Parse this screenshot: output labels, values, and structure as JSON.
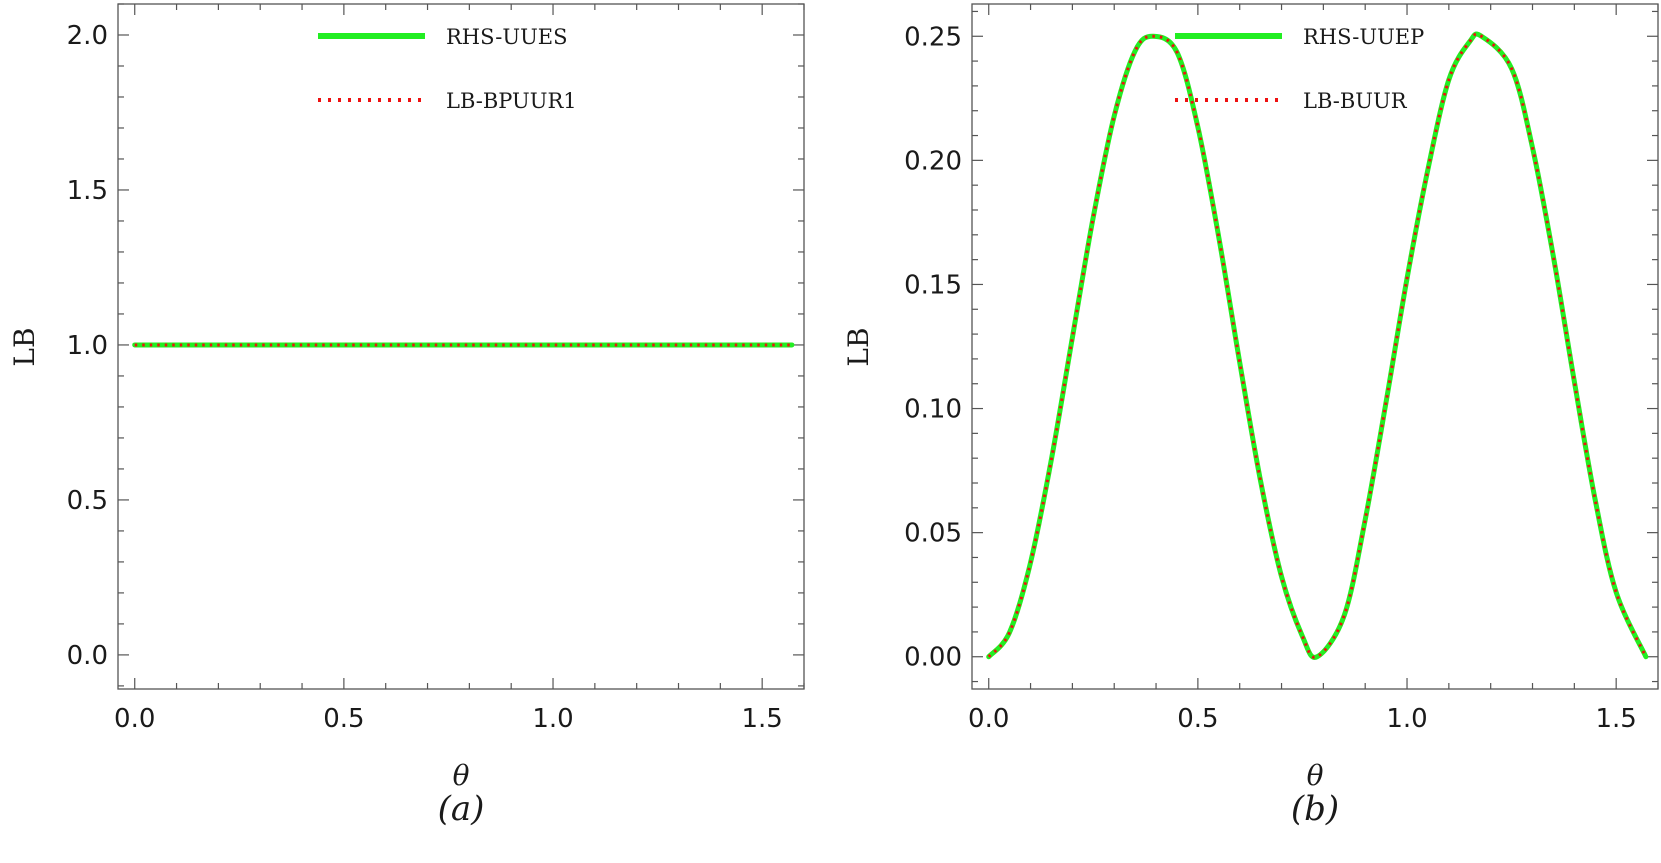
{
  "chart_data": [
    {
      "type": "line",
      "panel_label": "(a)",
      "xlabel": "θ",
      "ylabel": "LB",
      "xlim": [
        -0.04,
        1.6
      ],
      "ylim": [
        -0.11,
        2.1
      ],
      "xticks": [
        0.0,
        0.5,
        1.0,
        1.5
      ],
      "xtick_labels": [
        "0.0",
        "0.5",
        "1.0",
        "1.5"
      ],
      "yticks": [
        0.0,
        0.5,
        1.0,
        1.5,
        2.0
      ],
      "ytick_labels": [
        "0.0",
        "0.5",
        "1.0",
        "1.5",
        "2.0"
      ],
      "legend_position": "top-center",
      "series": [
        {
          "name": "RHS-UUES",
          "color": "#22ee22",
          "style": "solid",
          "x": [
            0.0,
            0.157,
            0.314,
            0.471,
            0.628,
            0.785,
            0.942,
            1.1,
            1.257,
            1.414,
            1.571
          ],
          "y": [
            1.0,
            1.0,
            1.0,
            1.0,
            1.0,
            1.0,
            1.0,
            1.0,
            1.0,
            1.0,
            1.0
          ]
        },
        {
          "name": "LB-BPUUR1",
          "color": "#ee1111",
          "style": "dotted",
          "x": [
            0.0,
            0.157,
            0.314,
            0.471,
            0.628,
            0.785,
            0.942,
            1.1,
            1.257,
            1.414,
            1.571
          ],
          "y": [
            1.0,
            1.0,
            1.0,
            1.0,
            1.0,
            1.0,
            1.0,
            1.0,
            1.0,
            1.0,
            1.0
          ]
        }
      ]
    },
    {
      "type": "line",
      "panel_label": "(b)",
      "xlabel": "θ",
      "ylabel": "LB",
      "xlim": [
        -0.04,
        1.6
      ],
      "ylim": [
        -0.013,
        0.263
      ],
      "xticks": [
        0.0,
        0.5,
        1.0,
        1.5
      ],
      "xtick_labels": [
        "0.0",
        "0.5",
        "1.0",
        "1.5"
      ],
      "yticks": [
        0.0,
        0.05,
        0.1,
        0.15,
        0.2,
        0.25
      ],
      "ytick_labels": [
        "0.00",
        "0.05",
        "0.10",
        "0.15",
        "0.20",
        "0.25"
      ],
      "legend_position": "top-center",
      "series": [
        {
          "name": "RHS-UUEP",
          "color": "#22ee22",
          "style": "solid",
          "x": [
            0.0,
            0.05,
            0.1,
            0.15,
            0.2,
            0.25,
            0.3,
            0.35,
            0.393,
            0.45,
            0.5,
            0.55,
            0.6,
            0.65,
            0.7,
            0.75,
            0.785,
            0.85,
            0.9,
            0.95,
            1.0,
            1.05,
            1.1,
            1.15,
            1.178,
            1.25,
            1.3,
            1.35,
            1.4,
            1.45,
            1.5,
            1.571
          ],
          "y": [
            0.0,
            0.0099,
            0.038,
            0.0797,
            0.1286,
            0.1772,
            0.2179,
            0.2441,
            0.25,
            0.2436,
            0.2134,
            0.169,
            0.1186,
            0.0707,
            0.0323,
            0.0082,
            0.0,
            0.0167,
            0.0552,
            0.1027,
            0.1524,
            0.1964,
            0.2325,
            0.2479,
            0.25,
            0.237,
            0.2051,
            0.1611,
            0.1109,
            0.0631,
            0.026,
            0.0
          ]
        },
        {
          "name": "LB-BUUR",
          "color": "#ee1111",
          "style": "dotted",
          "x": [
            0.0,
            0.05,
            0.1,
            0.15,
            0.2,
            0.25,
            0.3,
            0.35,
            0.393,
            0.45,
            0.5,
            0.55,
            0.6,
            0.65,
            0.7,
            0.75,
            0.785,
            0.85,
            0.9,
            0.95,
            1.0,
            1.05,
            1.1,
            1.15,
            1.178,
            1.25,
            1.3,
            1.35,
            1.4,
            1.45,
            1.5,
            1.571
          ],
          "y": [
            0.0,
            0.0099,
            0.038,
            0.0797,
            0.1286,
            0.1772,
            0.2179,
            0.2441,
            0.25,
            0.2436,
            0.2134,
            0.169,
            0.1186,
            0.0707,
            0.0323,
            0.0082,
            0.0,
            0.0167,
            0.0552,
            0.1027,
            0.1524,
            0.1964,
            0.2325,
            0.2479,
            0.25,
            0.237,
            0.2051,
            0.1611,
            0.1109,
            0.0631,
            0.026,
            0.0
          ]
        }
      ]
    }
  ]
}
